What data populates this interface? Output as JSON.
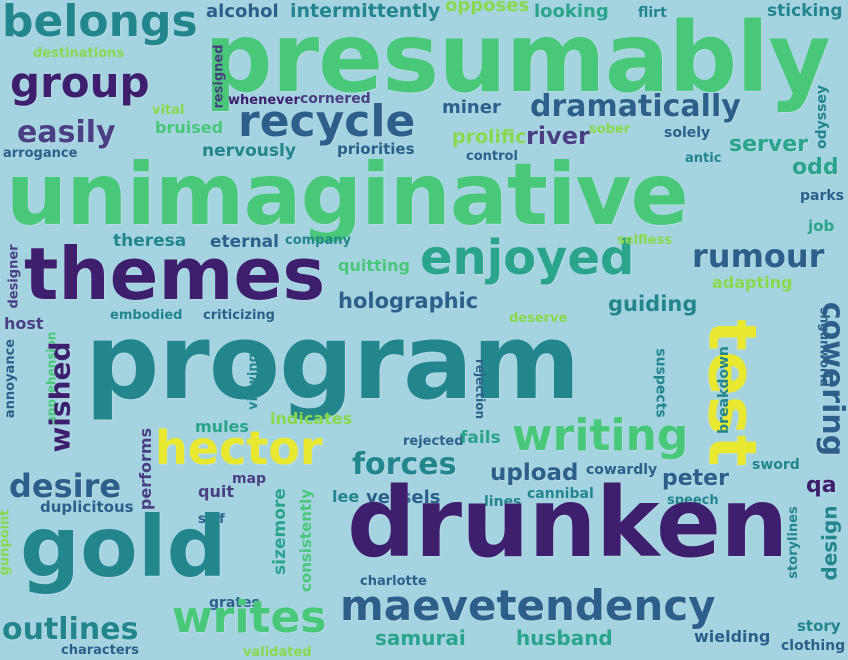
{
  "word_cloud": {
    "background": "#a6d3e0",
    "palette": [
      "#3e1f6e",
      "#2e5f8a",
      "#23868c",
      "#2aa48a",
      "#48c878",
      "#8bd850",
      "#e8e830"
    ],
    "words": {
      "presumably": "presumably",
      "unimaginative": "unimaginative",
      "program": "program",
      "drunken": "drunken",
      "gold": "gold",
      "themes": "themes",
      "enjoyed": "enjoyed",
      "maevetendency": "maevetendency",
      "writes": "writes",
      "writing": "writing",
      "hector": "hector",
      "recycle": "recycle",
      "dramatically": "dramatically",
      "group": "group",
      "belongs": "belongs",
      "easily": "easily",
      "rumour": "rumour",
      "outlines": "outlines",
      "desire": "desire",
      "forces": "forces",
      "test": "test",
      "cowering": "cowering",
      "wished": "wished",
      "upload": "upload",
      "peter": "peter",
      "samurai": "samurai",
      "husband": "husband",
      "holographic": "holographic",
      "guiding": "guiding",
      "server": "server",
      "odd": "odd",
      "river": "river",
      "prolific": "prolific",
      "design": "design",
      "alcohol": "alcohol",
      "intermittently": "intermittently",
      "opposes": "opposes",
      "looking": "looking",
      "flirt": "flirt",
      "sticking": "sticking",
      "destinations": "destinations",
      "resigned": "resigned",
      "whenever": "whenever",
      "cornered": "cornered",
      "miner": "miner",
      "sober": "sober",
      "solely": "solely",
      "odyssey": "odyssey",
      "vital": "vital",
      "arrogance": "arrogance",
      "bruised": "bruised",
      "nervously": "nervously",
      "priorities": "priorities",
      "control": "control",
      "antic": "antic",
      "parks": "parks",
      "job": "job",
      "theresa": "theresa",
      "eternal": "eternal",
      "company": "company",
      "selfless": "selfless",
      "quitting": "quitting",
      "adapting": "adapting",
      "designer": "designer",
      "embodied": "embodied",
      "criticizing": "criticizing",
      "deserve": "deserve",
      "host": "host",
      "apprehension": "apprehension",
      "annoyance": "annoyance",
      "viewing": "viewing",
      "rejection": "rejection",
      "suspects": "suspects",
      "breakdown": "breakdown",
      "shgunworld": "shgunworld",
      "mules": "mules",
      "indicates": "indicates",
      "rejected": "rejected",
      "fails": "fails",
      "cowardly": "cowardly",
      "sword": "sword",
      "qa": "qa",
      "performs": "performs",
      "map": "map",
      "quit": "quit",
      "sizemore": "sizemore",
      "lee": "lee",
      "vessels": "vessels",
      "lines": "lines",
      "cannibal": "cannibal",
      "speech": "speech",
      "duplicitous": "duplicitous",
      "self": "self",
      "consistently": "consistently",
      "gunpoint": "gunpoint",
      "charlotte": "charlotte",
      "storylines": "storylines",
      "grates": "grates",
      "story": "story",
      "wielding": "wielding",
      "clothing": "clothing",
      "characters": "characters",
      "validated": "validated"
    }
  }
}
